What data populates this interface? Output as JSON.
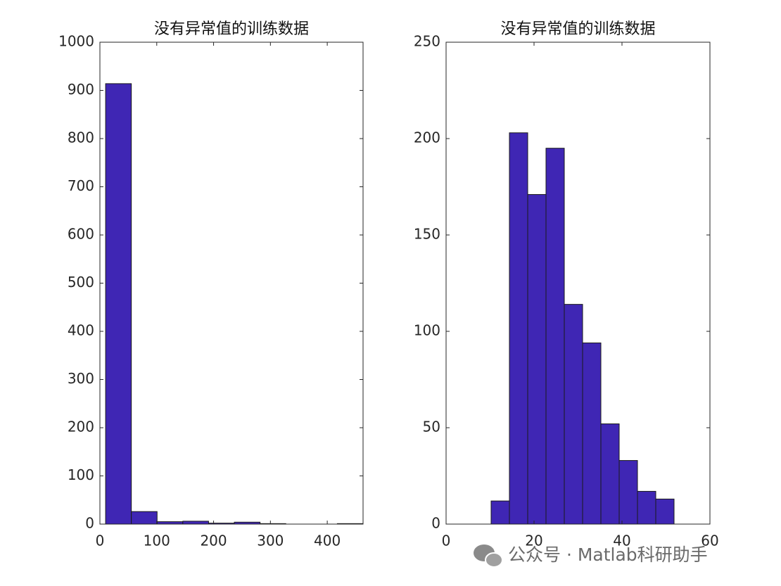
{
  "chart_data": [
    {
      "type": "histogram",
      "title": "没有异常值的训练数据",
      "bins": [
        10,
        55.3,
        100.6,
        145.9,
        191.2,
        236.5,
        281.8,
        327.1,
        372.4,
        417.7,
        463
      ],
      "counts": [
        914,
        26,
        5,
        6,
        2,
        4,
        1,
        0,
        0,
        1
      ],
      "color": "#3f26b4",
      "xlim": [
        0,
        463
      ],
      "xticks": [
        0,
        100,
        200,
        300,
        400
      ],
      "ylim": [
        0,
        1000
      ],
      "yticks": [
        0,
        100,
        200,
        300,
        400,
        500,
        600,
        700,
        800,
        900,
        1000
      ]
    },
    {
      "type": "histogram",
      "title": "没有异常值的训练数据",
      "bins": [
        10.24,
        14.4,
        18.56,
        22.72,
        26.88,
        31.04,
        35.2,
        39.36,
        43.52,
        47.68,
        51.84
      ],
      "counts": [
        12,
        203,
        171,
        195,
        114,
        94,
        52,
        33,
        17,
        13
      ],
      "color": "#3f26b4",
      "xlim": [
        0,
        60
      ],
      "xticks": [
        0,
        20,
        40,
        60
      ],
      "ylim": [
        0,
        250
      ],
      "yticks": [
        0,
        50,
        100,
        150,
        200,
        250
      ]
    }
  ],
  "watermark": "公众号 · Matlab科研助手"
}
